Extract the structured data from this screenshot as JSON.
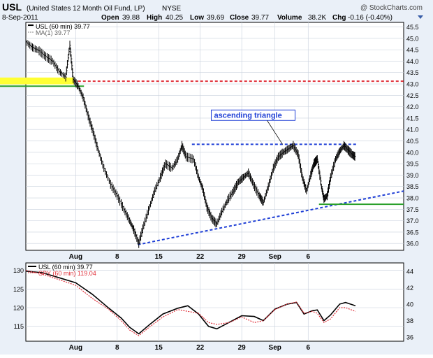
{
  "header": {
    "symbol": "USL",
    "name": "(United States 12 Month Oil Fund, LP)",
    "exchange": "NYSE",
    "watermark": "@ StockCharts.com",
    "date": "8-Sep-2011",
    "open_label": "Open",
    "open": "39.88",
    "high_label": "High",
    "high": "40.25",
    "low_label": "Low",
    "low": "39.69",
    "close_label": "Close",
    "close": "39.77",
    "volume_label": "Volume",
    "volume": "38.2K",
    "chg_label": "Chg",
    "chg": "-0.16 (-0.40%)"
  },
  "colors": {
    "panel_bg": "#ffffff",
    "outer_bg": "#eaf0f8",
    "grid": "#c8d0dc",
    "price": "#000000",
    "trendline": "#1f3fd6",
    "resistance": "#e0303a",
    "support": "#2aa02a",
    "highlight": "#ffff33",
    "spy": "#e0303a"
  },
  "chart_data": [
    {
      "type": "line",
      "legend": [
        "USL (60 min) 39.77",
        "MA(1) 39.77"
      ],
      "x_tick_labels": [
        "Aug",
        "8",
        "15",
        "22",
        "29",
        "Sep",
        "6"
      ],
      "ylim": [
        35.7,
        45.7
      ],
      "y_ticks": [
        36.0,
        36.5,
        37.0,
        37.5,
        38.0,
        38.5,
        39.0,
        39.5,
        40.0,
        40.5,
        41.0,
        41.5,
        42.0,
        42.5,
        43.0,
        43.5,
        44.0,
        44.5,
        45.0,
        45.5
      ],
      "x_day_range": [
        -6.0,
        39.5
      ],
      "grid": true,
      "series": [
        {
          "name": "USL (60 min)",
          "points": [
            [
              -6.0,
              44.85
            ],
            [
              -5.2,
              44.6
            ],
            [
              -4.4,
              44.45
            ],
            [
              -3.6,
              44.2
            ],
            [
              -2.8,
              44.0
            ],
            [
              -2.0,
              43.55
            ],
            [
              -1.2,
              43.3
            ],
            [
              -0.7,
              44.7
            ],
            [
              -0.3,
              43.2
            ],
            [
              0.3,
              42.9
            ],
            [
              0.9,
              42.4
            ],
            [
              1.5,
              41.6
            ],
            [
              2.1,
              40.9
            ],
            [
              2.7,
              40.1
            ],
            [
              3.4,
              39.3
            ],
            [
              4.2,
              38.6
            ],
            [
              5.0,
              38.1
            ],
            [
              5.8,
              37.5
            ],
            [
              6.5,
              37.0
            ],
            [
              7.0,
              36.6
            ],
            [
              7.6,
              36.0
            ],
            [
              8.2,
              36.8
            ],
            [
              8.9,
              37.6
            ],
            [
              9.5,
              38.3
            ],
            [
              10.2,
              38.9
            ],
            [
              10.8,
              39.5
            ],
            [
              11.6,
              39.3
            ],
            [
              12.3,
              39.7
            ],
            [
              12.8,
              40.3
            ],
            [
              13.3,
              39.8
            ],
            [
              14.2,
              39.7
            ],
            [
              14.8,
              38.9
            ],
            [
              15.3,
              38.4
            ],
            [
              15.8,
              37.6
            ],
            [
              16.4,
              37.1
            ],
            [
              17.0,
              36.85
            ],
            [
              17.6,
              37.4
            ],
            [
              18.3,
              37.9
            ],
            [
              19.0,
              38.3
            ],
            [
              19.6,
              38.7
            ],
            [
              20.2,
              38.9
            ],
            [
              20.8,
              39.1
            ],
            [
              21.4,
              38.6
            ],
            [
              22.1,
              38.1
            ],
            [
              22.6,
              37.8
            ],
            [
              23.2,
              38.5
            ],
            [
              23.8,
              39.3
            ],
            [
              24.4,
              39.8
            ],
            [
              25.0,
              40.0
            ],
            [
              25.6,
              40.15
            ],
            [
              26.2,
              40.3
            ],
            [
              26.8,
              39.9
            ],
            [
              27.3,
              38.9
            ],
            [
              27.8,
              38.3
            ],
            [
              28.3,
              39.0
            ],
            [
              28.7,
              39.5
            ],
            [
              29.1,
              39.7
            ],
            [
              29.6,
              38.5
            ],
            [
              29.9,
              37.95
            ],
            [
              30.3,
              38.1
            ],
            [
              30.7,
              38.9
            ],
            [
              31.3,
              39.7
            ],
            [
              31.8,
              40.05
            ],
            [
              32.3,
              40.3
            ],
            [
              32.8,
              40.1
            ],
            [
              33.3,
              39.9
            ],
            [
              33.7,
              39.8
            ]
          ]
        }
      ],
      "annotations": [
        {
          "text": "ascending triangle",
          "color": "#1f3fd6",
          "x": 16.5,
          "y": 41.55
        },
        {
          "kind": "resistance",
          "style": "dashed",
          "color": "#1f3fd6",
          "from": [
            14.0,
            40.35
          ],
          "to": [
            34.0,
            40.35
          ]
        },
        {
          "kind": "trendline",
          "style": "dashed",
          "color": "#1f3fd6",
          "from": [
            7.5,
            35.95
          ],
          "to": [
            39.5,
            38.3
          ]
        },
        {
          "kind": "resistance",
          "style": "dashed",
          "color": "#e0303a",
          "from": [
            -0.3,
            43.12
          ],
          "to": [
            39.5,
            43.12
          ]
        },
        {
          "kind": "support",
          "style": "solid",
          "color": "#2aa02a",
          "from": [
            29.3,
            37.72
          ],
          "to": [
            39.5,
            37.72
          ]
        },
        {
          "kind": "support",
          "style": "solid",
          "color": "#2aa02a",
          "from": [
            -6.0,
            42.9
          ],
          "to": [
            1.0,
            42.9
          ]
        },
        {
          "kind": "highlight-band",
          "color": "#ffff33",
          "from": [
            -6.0,
            43.28
          ],
          "to": [
            -0.2,
            42.98
          ]
        }
      ]
    },
    {
      "type": "line",
      "series_labels": [
        "USL (60 min) 39.77",
        "SPY (60 min) 119.04"
      ],
      "x_tick_labels": [
        "Aug",
        "8",
        "15",
        "22",
        "29",
        "Sep",
        "6"
      ],
      "left_axis": {
        "ylim": [
          111.0,
          132.0
        ],
        "ticks": [
          115,
          120,
          125,
          130
        ]
      },
      "right_axis": {
        "ylim": [
          35.5,
          45.0
        ],
        "ticks": [
          36,
          38,
          40,
          42,
          44
        ]
      },
      "grid": true,
      "series": [
        {
          "name": "USL (60 min)",
          "axis": "right",
          "points": [
            [
              -6.0,
              44.0
            ],
            [
              -4.0,
              43.8
            ],
            [
              -2.0,
              43.2
            ],
            [
              0.0,
              42.6
            ],
            [
              2.0,
              41.2
            ],
            [
              4.0,
              39.5
            ],
            [
              5.5,
              38.3
            ],
            [
              6.5,
              37.2
            ],
            [
              7.6,
              36.4
            ],
            [
              9.0,
              37.6
            ],
            [
              10.5,
              38.8
            ],
            [
              12.3,
              39.5
            ],
            [
              13.5,
              39.8
            ],
            [
              14.8,
              38.8
            ],
            [
              16.0,
              37.3
            ],
            [
              17.0,
              37.0
            ],
            [
              18.5,
              37.8
            ],
            [
              20.0,
              38.6
            ],
            [
              21.5,
              38.5
            ],
            [
              22.6,
              38.0
            ],
            [
              24.0,
              39.4
            ],
            [
              25.5,
              40.0
            ],
            [
              26.6,
              40.2
            ],
            [
              27.5,
              38.8
            ],
            [
              28.5,
              39.2
            ],
            [
              29.1,
              39.3
            ],
            [
              29.9,
              38.0
            ],
            [
              30.7,
              38.7
            ],
            [
              31.8,
              40.0
            ],
            [
              32.5,
              40.2
            ],
            [
              33.7,
              39.8
            ]
          ]
        },
        {
          "name": "SPY (60 min)",
          "axis": "left",
          "points": [
            [
              -6.0,
              130.0
            ],
            [
              -4.0,
              129.0
            ],
            [
              -2.0,
              127.5
            ],
            [
              0.0,
              126.0
            ],
            [
              2.0,
              122.5
            ],
            [
              4.0,
              119.5
            ],
            [
              5.5,
              116.5
            ],
            [
              6.5,
              114.0
            ],
            [
              7.6,
              112.5
            ],
            [
              9.0,
              115.0
            ],
            [
              10.5,
              117.5
            ],
            [
              12.3,
              119.5
            ],
            [
              13.5,
              119.0
            ],
            [
              14.8,
              118.5
            ],
            [
              16.0,
              116.0
            ],
            [
              17.0,
              115.5
            ],
            [
              18.5,
              116.0
            ],
            [
              20.0,
              117.5
            ],
            [
              21.5,
              116.0
            ],
            [
              22.6,
              116.5
            ],
            [
              24.0,
              119.5
            ],
            [
              25.5,
              121.0
            ],
            [
              26.6,
              121.5
            ],
            [
              27.5,
              118.5
            ],
            [
              28.5,
              119.0
            ],
            [
              29.1,
              118.5
            ],
            [
              29.9,
              116.0
            ],
            [
              30.7,
              117.0
            ],
            [
              31.8,
              120.0
            ],
            [
              32.5,
              120.0
            ],
            [
              33.7,
              119.0
            ]
          ]
        }
      ]
    }
  ]
}
